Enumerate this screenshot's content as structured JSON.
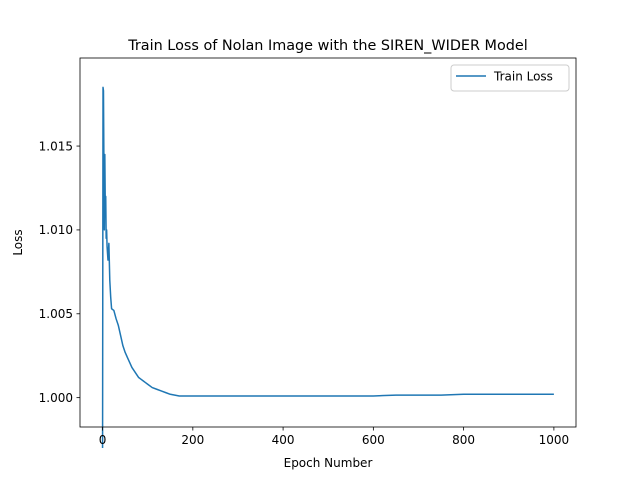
{
  "chart_data": {
    "type": "line",
    "title": "Train Loss of Nolan Image with the SIREN_WIDER Model",
    "xlabel": "Epoch Number",
    "ylabel": "Loss",
    "xlim": [
      -50,
      1049
    ],
    "ylim": [
      0.99825,
      1.02025
    ],
    "xticks": [
      0,
      200,
      400,
      600,
      800,
      1000
    ],
    "xtick_labels": [
      "0",
      "200",
      "400",
      "600",
      "800",
      "1000"
    ],
    "yticks": [
      1.0,
      1.005,
      1.01,
      1.015
    ],
    "ytick_labels": [
      "1.000",
      "1.005",
      "1.010",
      "1.015"
    ],
    "grid": false,
    "legend": {
      "position": "top-right",
      "entries": [
        "Train Loss"
      ]
    },
    "colors": {
      "series": "#1f77b4"
    },
    "series": [
      {
        "name": "Train Loss",
        "x": [
          0,
          1,
          2,
          3,
          4,
          5,
          6,
          7,
          8,
          9,
          10,
          12,
          14,
          16,
          18,
          20,
          25,
          30,
          35,
          40,
          45,
          50,
          55,
          60,
          65,
          70,
          75,
          80,
          85,
          90,
          95,
          100,
          110,
          120,
          130,
          140,
          150,
          160,
          170,
          180,
          200,
          250,
          300,
          350,
          400,
          450,
          500,
          550,
          600,
          650,
          700,
          750,
          800,
          850,
          900,
          950,
          1000
        ],
        "y": [
          0.997,
          1.0185,
          1.0183,
          1.014,
          1.01,
          1.0145,
          1.0115,
          1.012,
          1.0095,
          1.01,
          1.009,
          1.0082,
          1.0092,
          1.007,
          1.006,
          1.0053,
          1.0052,
          1.0047,
          1.0043,
          1.0037,
          1.0031,
          1.0027,
          1.0024,
          1.0021,
          1.0018,
          1.0016,
          1.0014,
          1.0012,
          1.0011,
          1.001,
          1.0009,
          1.0008,
          1.0006,
          1.0005,
          1.0004,
          1.0003,
          1.0002,
          1.00015,
          1.0001,
          1.0001,
          1.0001,
          1.0001,
          1.0001,
          1.0001,
          1.0001,
          1.0001,
          1.0001,
          1.0001,
          1.0001,
          1.00015,
          1.00015,
          1.00015,
          1.0002,
          1.0002,
          1.0002,
          1.0002,
          1.0002
        ]
      }
    ]
  }
}
